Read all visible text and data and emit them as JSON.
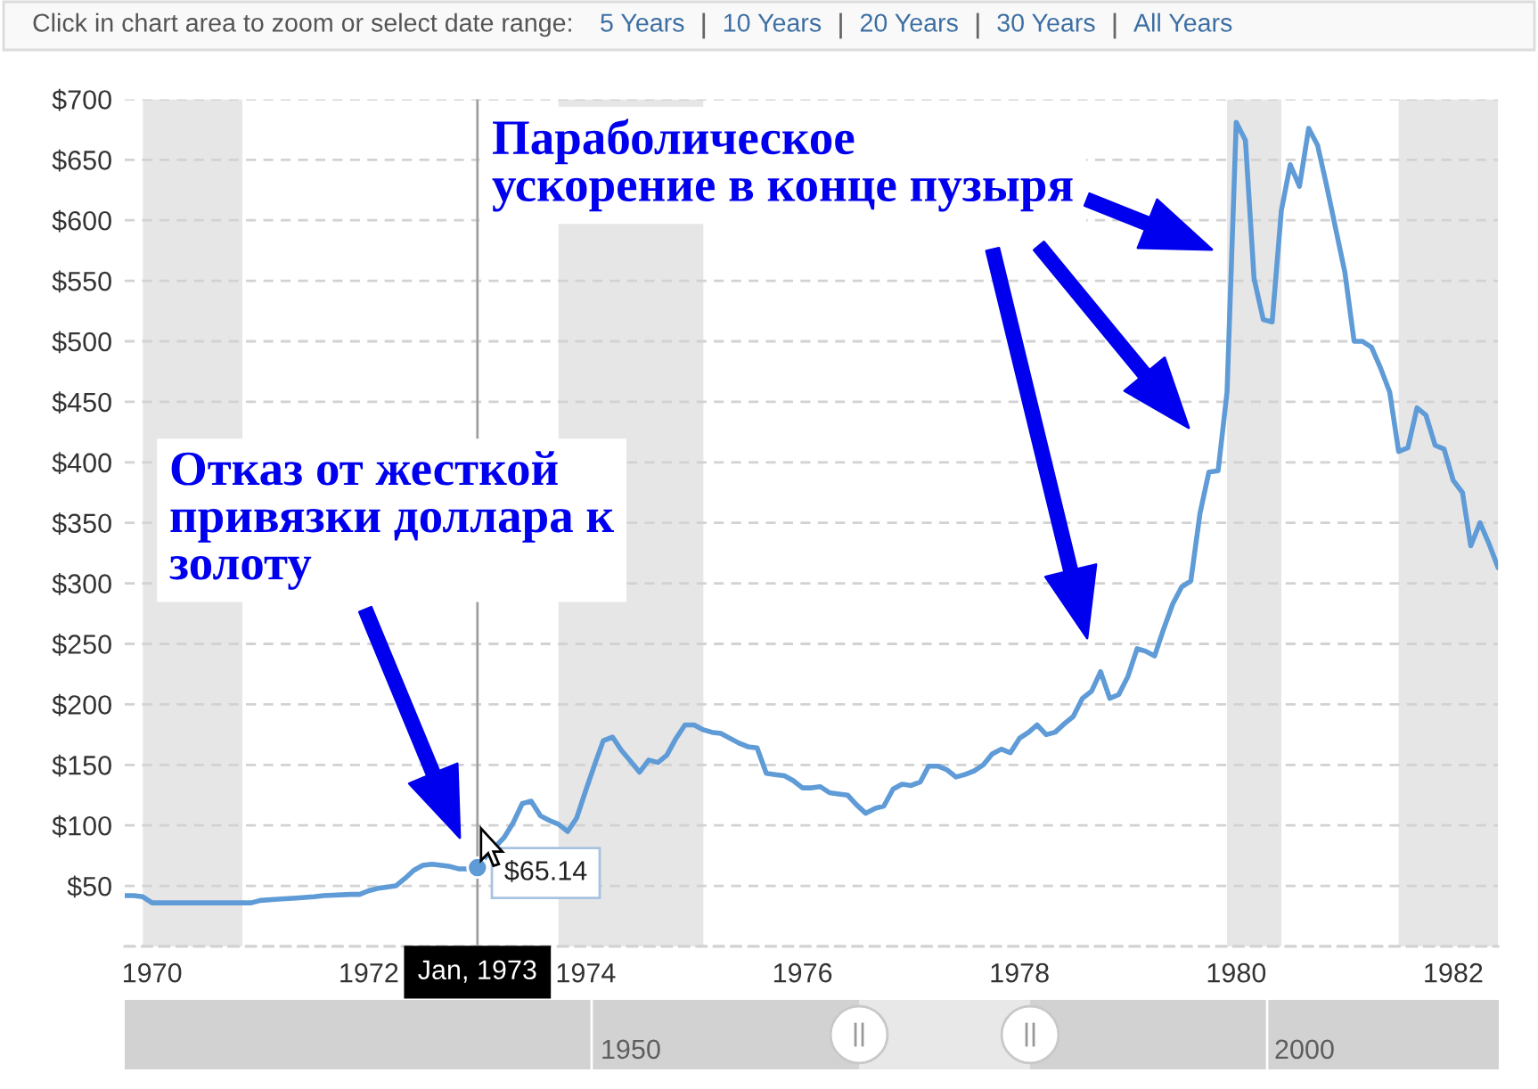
{
  "chart_data": [
    {
      "type": "line",
      "x": [
        "1969-10",
        "1969-11",
        "1969-12",
        "1970-01",
        "1970-04",
        "1970-08",
        "1970-12",
        "1971-01",
        "1971-03",
        "1971-05",
        "1971-07",
        "1971-08",
        "1971-11",
        "1971-12",
        "1972-01",
        "1972-02",
        "1972-03",
        "1972-04",
        "1972-05",
        "1972-06",
        "1972-07",
        "1972-08",
        "1972-09",
        "1972-10",
        "1972-11",
        "1972-12",
        "1973-01",
        "1973-02",
        "1973-03",
        "1973-04",
        "1973-05",
        "1973-06",
        "1973-07",
        "1973-08",
        "1973-09",
        "1973-10",
        "1973-11",
        "1973-12",
        "1974-01",
        "1974-02",
        "1974-03",
        "1974-04",
        "1974-05",
        "1974-06",
        "1974-07",
        "1974-08",
        "1974-09",
        "1974-10",
        "1974-11",
        "1974-12",
        "1975-01",
        "1975-02",
        "1975-03",
        "1975-04",
        "1975-05",
        "1975-06",
        "1975-07",
        "1975-08",
        "1975-09",
        "1975-10",
        "1975-11",
        "1975-12",
        "1976-01",
        "1976-02",
        "1976-03",
        "1976-04",
        "1976-05",
        "1976-06",
        "1976-07",
        "1976-08",
        "1976-09",
        "1976-10",
        "1976-11",
        "1976-12",
        "1977-01",
        "1977-02",
        "1977-03",
        "1977-04",
        "1977-05",
        "1977-06",
        "1977-07",
        "1977-08",
        "1977-09",
        "1977-10",
        "1977-11",
        "1977-12",
        "1978-01",
        "1978-02",
        "1978-03",
        "1978-04",
        "1978-05",
        "1978-06",
        "1978-07",
        "1978-08",
        "1978-09",
        "1978-10",
        "1978-11",
        "1978-12",
        "1979-01",
        "1979-02",
        "1979-03",
        "1979-04",
        "1979-05",
        "1979-06",
        "1979-07",
        "1979-08",
        "1979-09",
        "1979-10",
        "1979-11",
        "1979-12",
        "1980-01",
        "1980-02",
        "1980-03",
        "1980-04",
        "1980-05",
        "1980-06",
        "1980-07",
        "1980-08",
        "1980-09",
        "1980-10",
        "1980-11",
        "1980-12",
        "1981-01",
        "1981-02",
        "1981-03",
        "1981-04",
        "1981-05",
        "1981-06",
        "1981-07",
        "1981-08",
        "1981-09",
        "1981-10",
        "1981-11",
        "1981-12",
        "1982-01",
        "1982-02",
        "1982-03",
        "1982-04",
        "1982-05",
        "1982-06"
      ],
      "values": [
        42,
        42,
        41,
        36,
        36,
        36,
        36,
        38,
        39,
        40,
        41,
        42,
        43,
        43,
        46,
        48,
        49,
        50,
        56,
        63,
        67,
        68,
        67,
        66,
        64,
        64,
        65.14,
        75,
        82,
        90,
        102,
        118,
        120,
        108,
        104,
        101,
        95,
        106,
        129,
        151,
        170,
        173,
        162,
        153,
        144,
        154,
        152,
        158,
        172,
        183,
        183,
        179,
        177,
        176,
        172,
        168,
        165,
        164,
        143,
        142,
        141,
        137,
        131,
        131,
        132,
        127,
        126,
        125,
        117,
        110,
        114,
        116,
        130,
        134,
        133,
        136,
        149,
        149,
        146,
        140,
        142,
        145,
        150,
        159,
        163,
        160,
        172,
        177,
        183,
        175,
        177,
        184,
        190,
        205,
        211,
        227,
        205,
        208,
        223,
        246,
        244,
        240,
        262,
        283,
        297,
        302,
        358,
        392,
        393,
        458,
        681,
        666,
        552,
        518,
        516,
        608,
        646,
        628,
        676,
        662,
        628,
        593,
        557,
        500,
        500,
        495,
        478,
        458,
        409,
        412,
        445,
        439,
        414,
        411,
        385,
        375,
        331,
        350,
        333,
        313
      ],
      "value_labels": [
        null,
        null,
        null,
        null,
        null,
        null,
        null,
        null,
        null,
        null,
        null,
        null,
        null,
        null,
        null,
        null,
        null,
        null,
        null,
        null,
        null,
        null,
        null,
        null,
        null,
        null,
        "$65.14",
        null,
        null,
        null,
        null,
        null,
        null,
        null,
        null,
        null,
        null,
        null,
        null,
        null,
        null,
        null,
        null,
        null,
        null,
        null,
        null,
        null,
        null,
        null,
        null,
        null,
        null,
        null,
        null,
        null,
        null,
        null,
        null,
        null,
        null,
        null,
        null,
        null,
        null,
        null,
        null,
        null,
        null,
        null,
        null,
        null,
        null,
        null,
        null,
        null,
        null,
        null,
        null,
        null,
        null,
        null,
        null,
        null,
        null,
        null,
        null,
        null,
        null,
        null,
        null,
        null,
        null,
        null,
        null,
        null,
        null,
        null,
        null,
        null,
        null,
        null,
        null,
        null,
        null,
        null,
        null,
        null,
        null,
        null,
        null,
        null,
        null,
        null,
        null,
        null,
        null,
        null,
        null,
        null,
        null,
        null,
        null,
        null,
        null,
        null,
        null,
        null,
        null,
        null,
        null,
        null,
        null,
        null,
        null,
        null,
        null,
        null,
        null,
        null
      ],
      "color": "#5f9bd6",
      "xlim": [
        "1969-10",
        "1982-06"
      ],
      "xticks": [
        {
          "value": "1970-01",
          "label": "1970"
        },
        {
          "value": "1972-01",
          "label": "1972"
        },
        {
          "value": "1974-01",
          "label": "1974"
        },
        {
          "value": "1976-01",
          "label": "1976"
        },
        {
          "value": "1978-01",
          "label": "1978"
        },
        {
          "value": "1980-01",
          "label": "1980"
        },
        {
          "value": "1982-01",
          "label": "1982"
        }
      ],
      "ylim": [
        0,
        700
      ],
      "yticks": [
        {
          "value": 0,
          "label": null
        },
        {
          "value": 50,
          "label": "$50"
        },
        {
          "value": 100,
          "label": "$100"
        },
        {
          "value": 150,
          "label": "$150"
        },
        {
          "value": 200,
          "label": "$200"
        },
        {
          "value": 250,
          "label": "$250"
        },
        {
          "value": 300,
          "label": "$300"
        },
        {
          "value": 350,
          "label": "$350"
        },
        {
          "value": 400,
          "label": "$400"
        },
        {
          "value": 450,
          "label": "$450"
        },
        {
          "value": 500,
          "label": "$500"
        },
        {
          "value": 550,
          "label": "$550"
        },
        {
          "value": 600,
          "label": "$600"
        },
        {
          "value": 650,
          "label": "$650"
        },
        {
          "value": 700,
          "label": "$700"
        }
      ],
      "grid": "y",
      "bands": [
        {
          "axis": "x",
          "from": "1969-12",
          "to": "1970-11",
          "color": "#e6e6e6"
        },
        {
          "axis": "x",
          "from": "1973-10",
          "to": "1975-02",
          "color": "#e6e6e6"
        },
        {
          "axis": "x",
          "from": "1979-12",
          "to": "1980-06",
          "color": "#e6e6e6"
        },
        {
          "axis": "x",
          "from": "1981-07",
          "to": "1982-06",
          "color": "#e6e6e6"
        }
      ],
      "ref_lines": [
        {
          "axis": "x",
          "value": "1973-01",
          "label": "Jan, 1973",
          "color": "#a0a0a0"
        }
      ],
      "annotations": [
        "Click in chart area to zoom or select date range:",
        "5 Years",
        "10 Years",
        "20 Years",
        "30 Years",
        "All Years",
        "Отказ от жесткой\nпривязки доллара к\nзолоту",
        "Параболическое\nускорение в конце пузыря"
      ]
    },
    {
      "type": "other",
      "annotations": [
        "1950",
        "2000"
      ]
    }
  ]
}
